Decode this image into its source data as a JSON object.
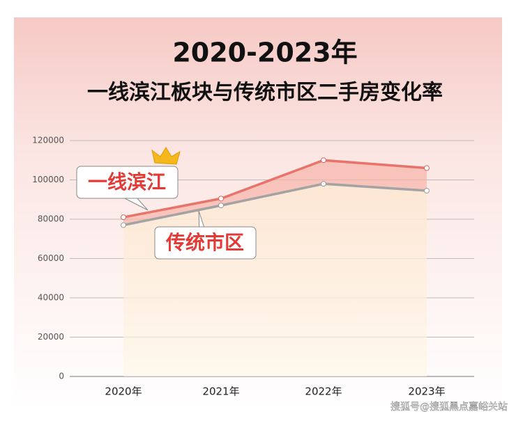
{
  "chart_data": {
    "type": "line",
    "title": "2020-2023年",
    "subtitle": "一线滨江板块与传统市区二手房变化率",
    "categories": [
      "2020年",
      "2021年",
      "2022年",
      "2023年"
    ],
    "series": [
      {
        "name": "一线滨江",
        "color": "#e8736b",
        "values": [
          81000,
          90500,
          110000,
          106000
        ]
      },
      {
        "name": "传统市区",
        "color": "#a3a3a3",
        "values": [
          77000,
          87000,
          98000,
          94500
        ]
      }
    ],
    "ylim": [
      0,
      120000
    ],
    "yticks": [
      0,
      20000,
      40000,
      60000,
      80000,
      100000,
      120000
    ],
    "grid": true,
    "watermark": "搜狐号@搜狐黑点嘉峪关站"
  }
}
